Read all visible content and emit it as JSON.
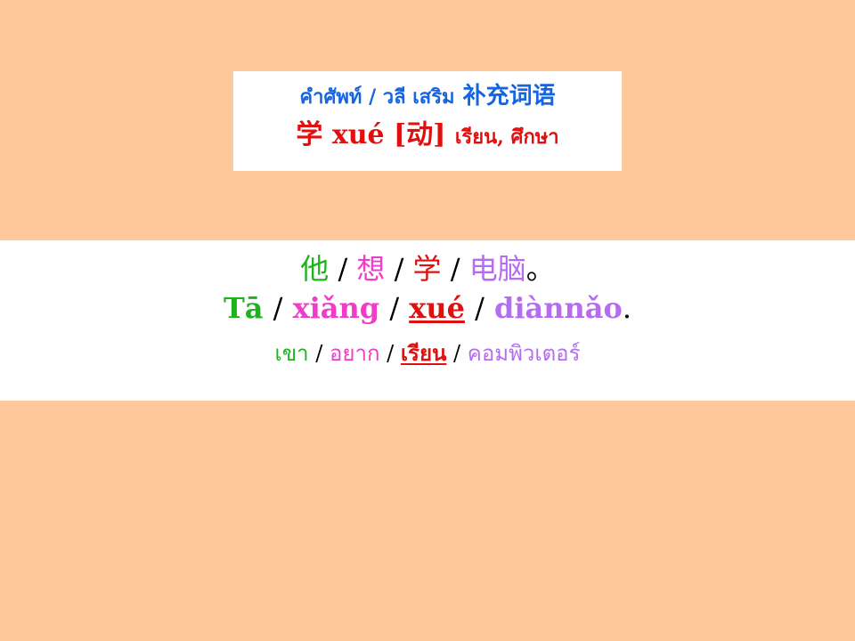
{
  "title": {
    "prefix": "คำศัพท์ / วลี เสริม",
    "chinese": "补充词语",
    "word": "学 xué [动]",
    "thai_meaning": "เรียน, ศึกษา"
  },
  "sentence": {
    "hanzi": [
      "他",
      "想",
      "学",
      "电脑"
    ],
    "hanzi_end": "。",
    "pinyin": [
      "Tā",
      "xiǎng",
      "xué",
      "diànnǎo"
    ],
    "pinyin_end": ".",
    "thai": [
      "เขา",
      "อยาก",
      "เรียน",
      "คอมพิวเตอร์"
    ],
    "separator": "/"
  },
  "colors": {
    "background": "#FFC89A",
    "title_blue": "#1565E0",
    "red": "#E01010",
    "green": "#1DB31D",
    "pink": "#F03CC8",
    "violet": "#B56CF0"
  }
}
